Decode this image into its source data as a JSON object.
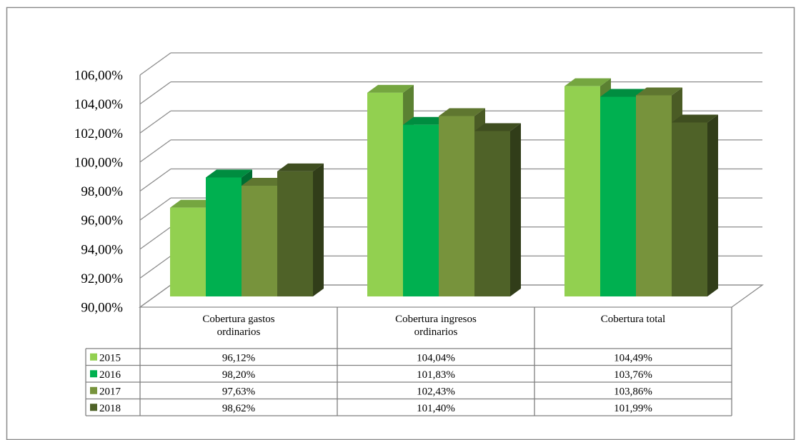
{
  "chart_data": {
    "type": "bar",
    "categories": [
      "Cobertura gastos ordinarios",
      "Cobertura ingresos ordinarios",
      "Cobertura total"
    ],
    "category_lines": [
      [
        "Cobertura gastos",
        "ordinarios"
      ],
      [
        "Cobertura ingresos",
        "ordinarios"
      ],
      [
        "Cobertura total"
      ]
    ],
    "series": [
      {
        "name": "2015",
        "color": "#92d050",
        "values": [
          96.12,
          104.04,
          104.49
        ],
        "labels": [
          "96,12%",
          "104,04%",
          "104,49%"
        ]
      },
      {
        "name": "2016",
        "color": "#00b050",
        "values": [
          98.2,
          101.83,
          103.76
        ],
        "labels": [
          "98,20%",
          "101,83%",
          "103,76%"
        ]
      },
      {
        "name": "2017",
        "color": "#77933c",
        "values": [
          97.63,
          102.43,
          103.86
        ],
        "labels": [
          "97,63%",
          "102,43%",
          "103,86%"
        ]
      },
      {
        "name": "2018",
        "color": "#4f6228",
        "values": [
          98.62,
          101.4,
          101.99
        ],
        "labels": [
          "98,62%",
          "101,40%",
          "101,99%"
        ]
      }
    ],
    "ylim": [
      90,
      106
    ],
    "yticks": [
      90,
      92,
      94,
      96,
      98,
      100,
      102,
      104,
      106
    ],
    "ytick_labels": [
      "90,00%",
      "92,00%",
      "94,00%",
      "96,00%",
      "98,00%",
      "100,00%",
      "102,00%",
      "104,00%",
      "106,00%"
    ],
    "grid": true,
    "style": "3d-clustered-column",
    "data_table": true,
    "title": "",
    "xlabel": "",
    "ylabel": ""
  }
}
